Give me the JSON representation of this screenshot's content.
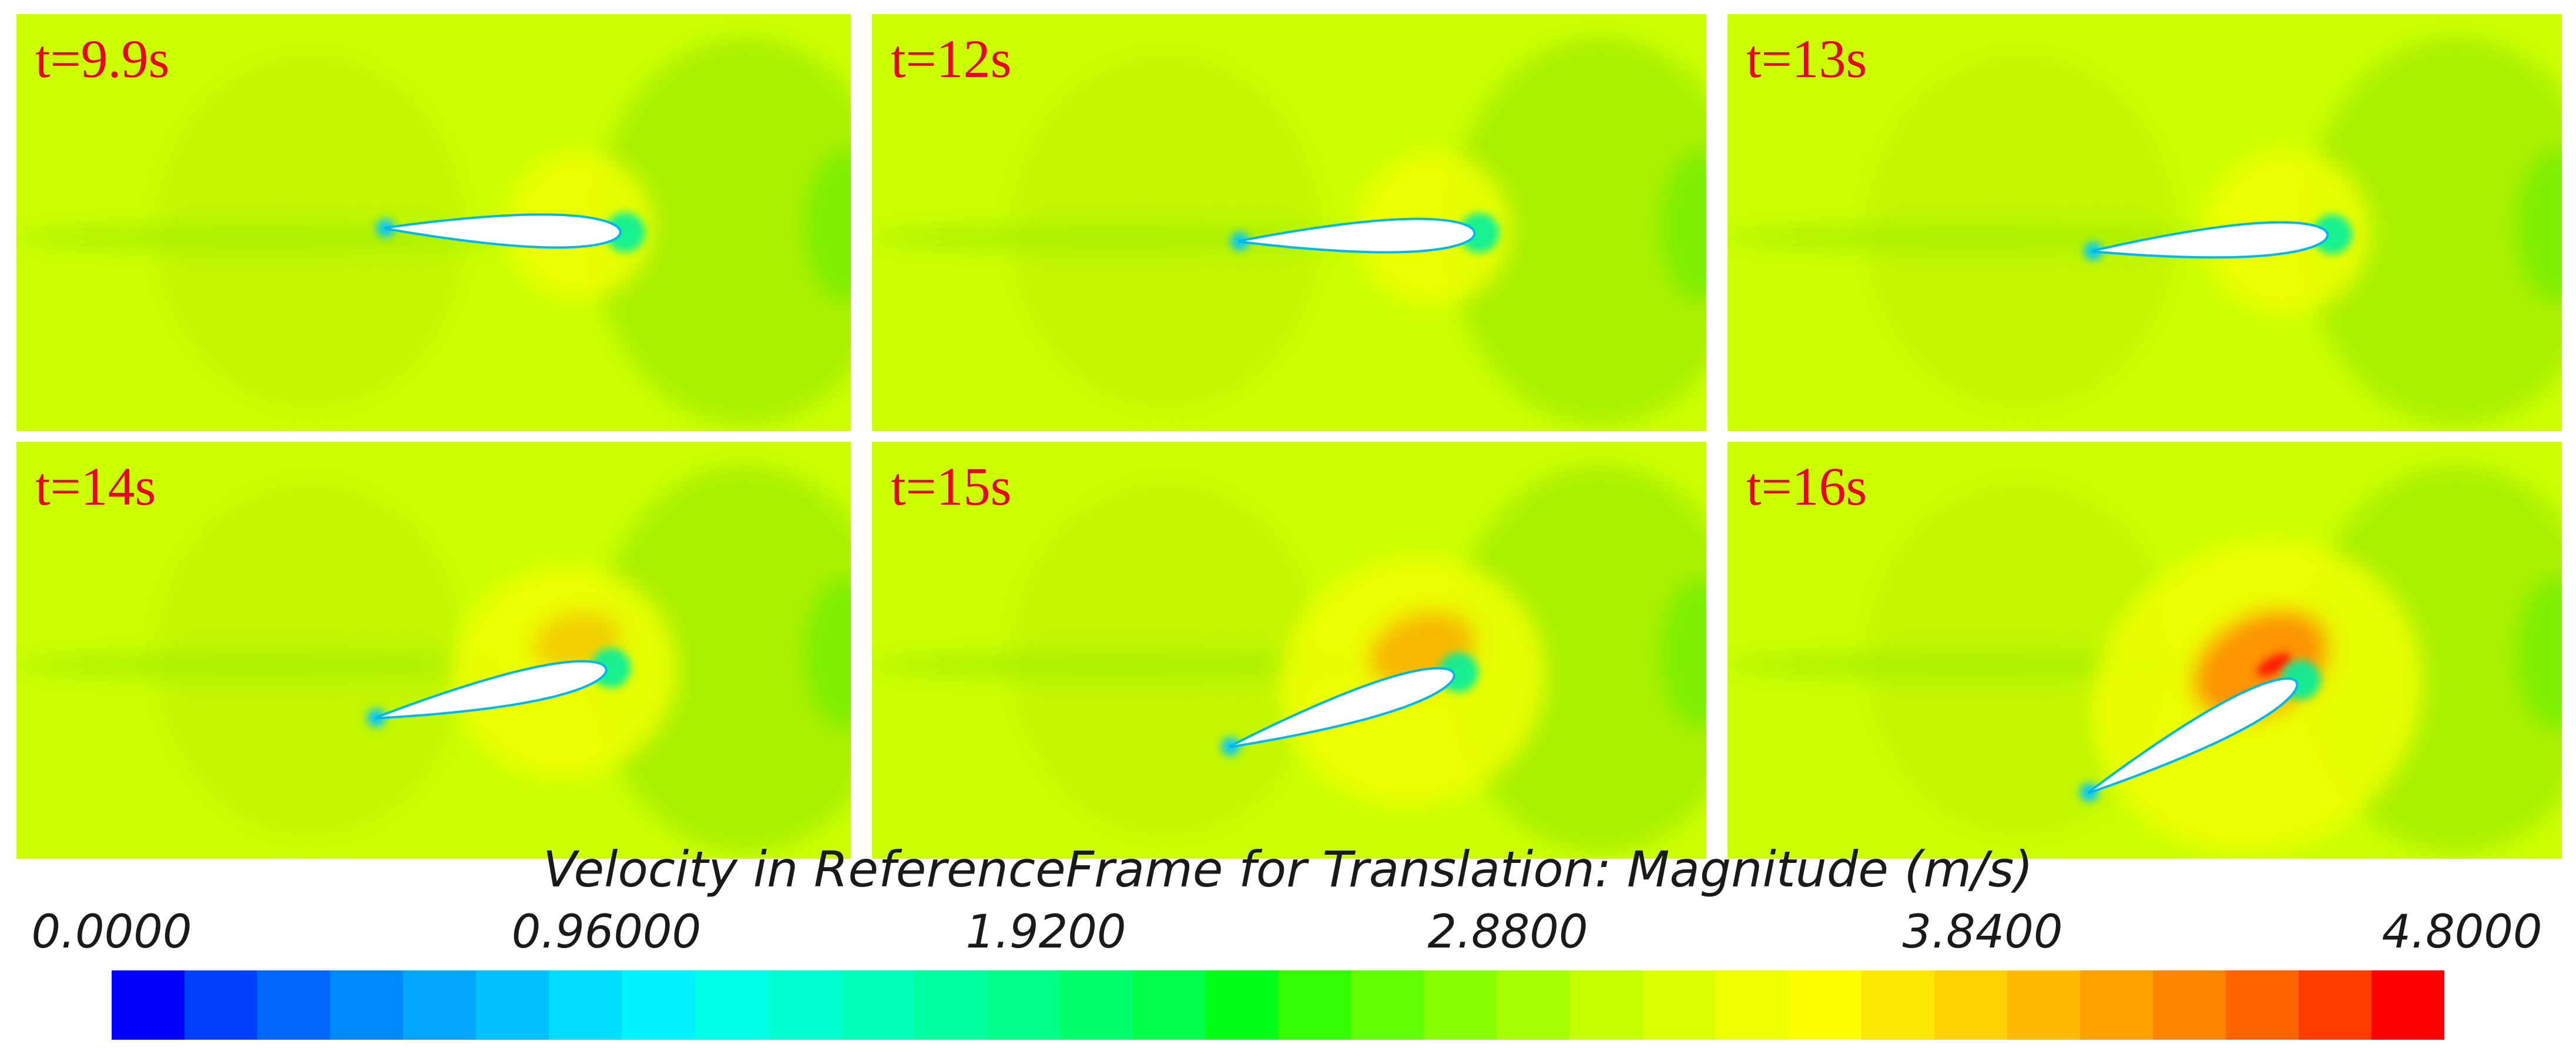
{
  "panels": [
    {
      "time_label": "t=9.9s",
      "airfoil_angle_deg": 1
    },
    {
      "time_label": "t=12s",
      "airfoil_angle_deg": -2
    },
    {
      "time_label": "t=13s",
      "airfoil_angle_deg": -4
    },
    {
      "time_label": "t=14s",
      "airfoil_angle_deg": -12
    },
    {
      "time_label": "t=15s",
      "airfoil_angle_deg": -18
    },
    {
      "time_label": "t=16s",
      "airfoil_angle_deg": -28
    }
  ],
  "colorbar": {
    "title": "Velocity in ReferenceFrame for Translation: Magnitude (m/s)",
    "ticks": [
      "0.0000",
      "0.96000",
      "1.9200",
      "2.8800",
      "3.8400",
      "4.8000"
    ],
    "min": 0,
    "max": 4.8,
    "colors": [
      "#0000ff",
      "#0040ff",
      "#0068ff",
      "#0088ff",
      "#00a6ff",
      "#00c2ff",
      "#00dcff",
      "#00f2ff",
      "#00ffe8",
      "#00ffd0",
      "#00ffb8",
      "#00ffa0",
      "#00ff86",
      "#00ff6a",
      "#00ff48",
      "#00ff14",
      "#34ff00",
      "#62ff00",
      "#88ff00",
      "#a8ff00",
      "#c4ff00",
      "#dcff00",
      "#f0ff00",
      "#ffff00",
      "#ffe800",
      "#ffd200",
      "#ffbb00",
      "#ffa200",
      "#ff8600",
      "#ff6400",
      "#ff3c00",
      "#ff0000"
    ]
  },
  "field_colors": {
    "background": "#ccff00",
    "wake": "#a6f000",
    "outer_halo": "#bff500",
    "accelerated": "#f0ff00",
    "high": "#ff8800",
    "peak": "#ff1e00",
    "stagnation": "#00f0a0",
    "low": "#00c8ff",
    "airfoil_fill": "#ffffff",
    "airfoil_outline": "#00b8e8"
  }
}
